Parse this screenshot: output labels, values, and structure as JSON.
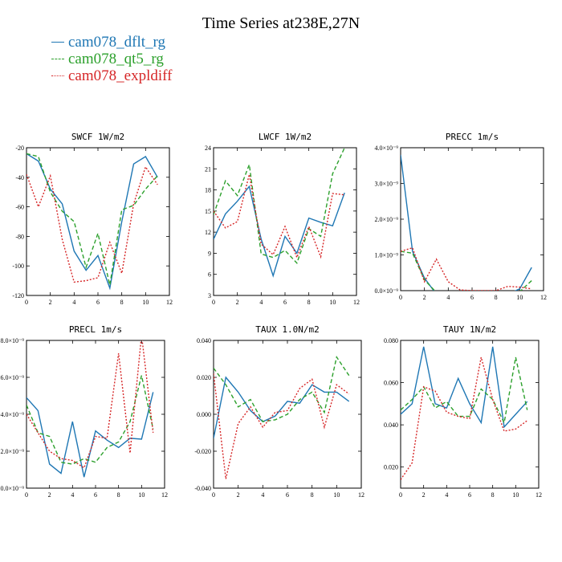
{
  "title": "Time Series at238E,27N",
  "legend": [
    {
      "label": "cam078_dflt_rg",
      "color": "#1f77b4",
      "dash": "solid"
    },
    {
      "label": "cam078_qt5_rg",
      "color": "#2ca02c",
      "dash": "dashed"
    },
    {
      "label": "cam078_expldiff",
      "color": "#d62728",
      "dash": "dotted"
    }
  ],
  "chart_data": [
    {
      "type": "line",
      "title": "SWCF   1W/m2",
      "x": [
        0,
        1,
        2,
        3,
        4,
        5,
        6,
        7,
        8,
        9,
        10,
        11
      ],
      "xlim": [
        0,
        12
      ],
      "xticks": [
        0,
        2,
        4,
        6,
        8,
        10,
        12
      ],
      "ylim": [
        -120,
        -20
      ],
      "yticks": [
        -120,
        -100,
        -80,
        -60,
        -40,
        -20
      ],
      "ytick_labels": [
        "-120",
        "-100",
        "-80",
        "-60",
        "-40",
        "-20"
      ],
      "series": [
        {
          "name": "cam078_dflt_rg",
          "values": [
            -24,
            -29,
            -48,
            -58,
            -90,
            -103,
            -93,
            -115,
            -70,
            -31,
            -26,
            -40
          ]
        },
        {
          "name": "cam078_qt5_rg",
          "values": [
            -24,
            -26,
            -50,
            -63,
            -70,
            -101,
            -78,
            -113,
            -62,
            -59,
            -48,
            -39
          ]
        },
        {
          "name": "cam078_expldiff",
          "values": [
            -38,
            -60,
            -39,
            -82,
            -111,
            -110,
            -108,
            -84,
            -105,
            -58,
            -33,
            -45
          ]
        }
      ]
    },
    {
      "type": "line",
      "title": "LWCF   1W/m2",
      "x": [
        0,
        1,
        2,
        3,
        4,
        5,
        6,
        7,
        8,
        9,
        10,
        11
      ],
      "xlim": [
        0,
        12
      ],
      "xticks": [
        0,
        2,
        4,
        6,
        8,
        10,
        12
      ],
      "ylim": [
        3,
        24
      ],
      "yticks": [
        3,
        6,
        9,
        12,
        15,
        18,
        21,
        24
      ],
      "ytick_labels": [
        "3",
        "6",
        "9",
        "12",
        "15",
        "18",
        "21",
        "24"
      ],
      "series": [
        {
          "name": "cam078_dflt_rg",
          "values": [
            11,
            14.6,
            16.4,
            18.5,
            11,
            5.8,
            11.4,
            9,
            14,
            13.4,
            12.9,
            17.6
          ]
        },
        {
          "name": "cam078_qt5_rg",
          "values": [
            14.5,
            19.3,
            17.2,
            21.6,
            8.9,
            8.4,
            9.4,
            7.6,
            12.5,
            11.4,
            20.3,
            24
          ]
        },
        {
          "name": "cam078_expldiff",
          "values": [
            15,
            12.6,
            13.5,
            20.2,
            10.3,
            8.8,
            12.8,
            8.4,
            12.8,
            8.5,
            17.5,
            17.3
          ]
        }
      ]
    },
    {
      "type": "line",
      "title": "PRECC   1m/s",
      "x": [
        0,
        1,
        2,
        3,
        4,
        5,
        6,
        7,
        8,
        9,
        10,
        11
      ],
      "xlim": [
        0,
        12
      ],
      "xticks": [
        0,
        2,
        4,
        6,
        8,
        10,
        12
      ],
      "ylim": [
        0,
        4e-09
      ],
      "yticks": [
        0,
        1e-09,
        2e-09,
        3e-09,
        4e-09
      ],
      "ytick_labels": [
        "0.0×10⁻⁹",
        "1.0×10⁻⁹",
        "2.0×10⁻⁹",
        "3.0×10⁻⁹",
        "4.0×10⁻⁹"
      ],
      "series": [
        {
          "name": "cam078_dflt_rg",
          "values": [
            3.8e-09,
            1.1e-09,
            3.5e-10,
            -1e-10,
            -1e-10,
            -1e-10,
            -1e-10,
            -1e-10,
            -1e-10,
            -1e-10,
            5e-11,
            6.5e-10
          ]
        },
        {
          "name": "cam078_qt5_rg",
          "values": [
            1.1e-09,
            1.05e-09,
            3e-10,
            -5e-11,
            -5e-11,
            -5e-11,
            -5e-11,
            -5e-11,
            -5e-11,
            -5e-11,
            -3e-11,
            2.8e-10
          ]
        },
        {
          "name": "cam078_expldiff",
          "values": [
            1.1e-09,
            1.2e-09,
            2.5e-10,
            8.8e-10,
            2.5e-10,
            2e-11,
            0,
            0,
            0,
            1.2e-10,
            1e-10,
            5e-11
          ]
        }
      ]
    },
    {
      "type": "line",
      "title": "PRECL   1m/s",
      "x": [
        0,
        1,
        2,
        3,
        4,
        5,
        6,
        7,
        8,
        9,
        10,
        11
      ],
      "xlim": [
        0,
        12
      ],
      "xticks": [
        0,
        2,
        4,
        6,
        8,
        10,
        12
      ],
      "ylim": [
        0,
        8e-09
      ],
      "yticks": [
        0,
        2e-09,
        4e-09,
        6e-09,
        8e-09
      ],
      "ytick_labels": [
        "0.0×10⁻⁹",
        "2.0×10⁻⁹",
        "4.0×10⁻⁹",
        "6.0×10⁻⁹",
        "8.0×10⁻⁹"
      ],
      "series": [
        {
          "name": "cam078_dflt_rg",
          "values": [
            4.9e-09,
            4.2e-09,
            1.3e-09,
            8e-10,
            3.6e-09,
            6e-10,
            3.1e-09,
            2.6e-09,
            2.2e-09,
            2.7e-09,
            2.65e-09,
            5.2e-09
          ]
        },
        {
          "name": "cam078_qt5_rg",
          "values": [
            4.5e-09,
            3e-09,
            2.8e-09,
            1.4e-09,
            1.3e-09,
            1.6e-09,
            1.4e-09,
            2.2e-09,
            2.5e-09,
            3.6e-09,
            6.1e-09,
            3.2e-09
          ]
        },
        {
          "name": "cam078_expldiff",
          "values": [
            4e-09,
            3e-09,
            2e-09,
            1.6e-09,
            1.5e-09,
            1.1e-09,
            2.8e-09,
            2.7e-09,
            7.3e-09,
            1.9e-09,
            8.3e-09,
            3e-09
          ]
        }
      ]
    },
    {
      "type": "line",
      "title": "TAUX   1.0N/m2",
      "x": [
        0,
        1,
        2,
        3,
        4,
        5,
        6,
        7,
        8,
        9,
        10,
        11
      ],
      "xlim": [
        0,
        12
      ],
      "xticks": [
        0,
        2,
        4,
        6,
        8,
        10,
        12
      ],
      "ylim": [
        -0.04,
        0.04
      ],
      "yticks": [
        -0.04,
        -0.02,
        0,
        0.02,
        0.04
      ],
      "ytick_labels": [
        "-0.040",
        "-0.020",
        "0.000",
        "0.020",
        "0.040"
      ],
      "series": [
        {
          "name": "cam078_dflt_rg",
          "values": [
            -0.013,
            0.02,
            0.012,
            0.002,
            -0.004,
            -0.001,
            0.007,
            0.006,
            0.016,
            0.012,
            0.012,
            0.007
          ]
        },
        {
          "name": "cam078_qt5_rg",
          "values": [
            0.025,
            0.016,
            0.004,
            0.008,
            -0.004,
            -0.003,
            0,
            0.008,
            0.012,
            0.001,
            0.031,
            0.021
          ]
        },
        {
          "name": "cam078_expldiff",
          "values": [
            0.022,
            -0.035,
            -0.005,
            0.004,
            -0.007,
            0.001,
            0.002,
            0.014,
            0.019,
            -0.007,
            0.016,
            0.011
          ]
        }
      ]
    },
    {
      "type": "line",
      "title": "TAUY   1N/m2",
      "x": [
        0,
        1,
        2,
        3,
        4,
        5,
        6,
        7,
        8,
        9,
        10,
        11
      ],
      "xlim": [
        0,
        12
      ],
      "xticks": [
        0,
        2,
        4,
        6,
        8,
        10,
        12
      ],
      "ylim": [
        0.01,
        0.08
      ],
      "yticks": [
        0.02,
        0.04,
        0.06,
        0.08
      ],
      "ytick_labels": [
        "0.020",
        "0.040",
        "0.060",
        "0.080"
      ],
      "series": [
        {
          "name": "cam078_dflt_rg",
          "values": [
            0.045,
            0.05,
            0.077,
            0.05,
            0.048,
            0.062,
            0.05,
            0.041,
            0.077,
            0.039,
            0.045,
            0.051
          ]
        },
        {
          "name": "cam078_qt5_rg",
          "values": [
            0.047,
            0.052,
            0.058,
            0.048,
            0.051,
            0.044,
            0.044,
            0.057,
            0.052,
            0.041,
            0.072,
            0.047
          ]
        },
        {
          "name": "cam078_expldiff",
          "values": [
            0.014,
            0.022,
            0.058,
            0.056,
            0.046,
            0.044,
            0.043,
            0.072,
            0.052,
            0.037,
            0.038,
            0.042
          ]
        }
      ]
    }
  ]
}
